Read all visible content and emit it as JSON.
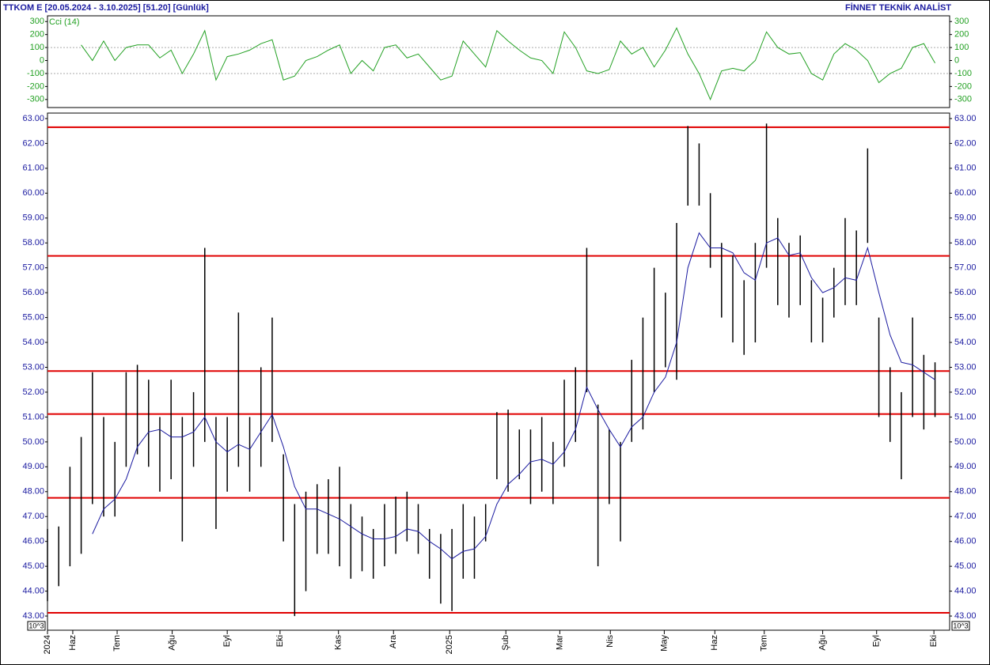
{
  "header": {
    "title": "TTKOM E  [20.05.2024 - 3.10.2025]  [51.20]  [Günlük]",
    "brand": "FİNNET TEKNİK ANALİST",
    "unit_label": "10^3"
  },
  "chart_data": [
    {
      "type": "line",
      "title": "Cci (14)",
      "color": "#22a022",
      "ylim": [
        -362,
        344
      ],
      "yticks": [
        300,
        200,
        100,
        0,
        -100,
        -200,
        -300
      ],
      "grid_values": [
        100,
        -100
      ],
      "xlim": [
        0,
        80.3
      ],
      "values": [
        null,
        null,
        null,
        120,
        0,
        150,
        0,
        100,
        120,
        120,
        20,
        80,
        -100,
        50,
        230,
        -150,
        30,
        50,
        80,
        130,
        160,
        -150,
        -120,
        0,
        30,
        80,
        120,
        -100,
        0,
        -80,
        100,
        120,
        20,
        50,
        -50,
        -150,
        -120,
        150,
        50,
        -50,
        230,
        150,
        80,
        20,
        0,
        -100,
        220,
        100,
        -80,
        -100,
        -70,
        150,
        50,
        100,
        -50,
        80,
        250,
        50,
        -100,
        -300,
        -80,
        -60,
        -80,
        0,
        220,
        100,
        50,
        60,
        -100,
        -150,
        50,
        130,
        80,
        0,
        -170,
        -100,
        -60,
        100,
        130,
        -20
      ]
    },
    {
      "type": "range_bar",
      "color": "#000000",
      "ylim": [
        42.43,
        63.22
      ],
      "xlim": [
        0,
        80.3
      ],
      "yticks": [
        {
          "value": 43,
          "label": "43.00"
        },
        {
          "value": 44,
          "label": "44.00"
        },
        {
          "value": 45,
          "label": "45.00"
        },
        {
          "value": 46,
          "label": "46.00"
        },
        {
          "value": 47,
          "label": "47.00"
        },
        {
          "value": 48,
          "label": "48.00"
        },
        {
          "value": 49,
          "label": "49.00"
        },
        {
          "value": 50,
          "label": "50.00"
        },
        {
          "value": 51,
          "label": "51.00"
        },
        {
          "value": 52,
          "label": "52.00"
        },
        {
          "value": 53,
          "label": "53.00"
        },
        {
          "value": 54,
          "label": "54.00"
        },
        {
          "value": 55,
          "label": "55.00"
        },
        {
          "value": 56,
          "label": "56.00"
        },
        {
          "value": 57,
          "label": "57.00"
        },
        {
          "value": 58,
          "label": "58.00"
        },
        {
          "value": 59,
          "label": "59.00"
        },
        {
          "value": 60,
          "label": "60.00"
        },
        {
          "value": 61,
          "label": "61.00"
        },
        {
          "value": 62,
          "label": "62.00"
        },
        {
          "value": 63,
          "label": "63.00"
        }
      ],
      "xticks": [
        {
          "value": 0,
          "label": "2024"
        },
        {
          "value": 2.25,
          "label": "Haz"
        },
        {
          "value": 6.2,
          "label": "Tem"
        },
        {
          "value": 11.1,
          "label": "Ağu"
        },
        {
          "value": 16,
          "label": "Eyl"
        },
        {
          "value": 20.7,
          "label": "Eki"
        },
        {
          "value": 25.9,
          "label": "Kas"
        },
        {
          "value": 30.8,
          "label": "Ara"
        },
        {
          "value": 35.8,
          "label": "2025"
        },
        {
          "value": 40.8,
          "label": "Şub"
        },
        {
          "value": 45.6,
          "label": "Mar"
        },
        {
          "value": 50.1,
          "label": "Nis"
        },
        {
          "value": 54.9,
          "label": "May"
        },
        {
          "value": 59.4,
          "label": "Haz"
        },
        {
          "value": 63.8,
          "label": "Tem"
        },
        {
          "value": 69,
          "label": "Ağu"
        },
        {
          "value": 73.8,
          "label": "Eyl"
        },
        {
          "value": 78.9,
          "label": "Eki"
        }
      ],
      "high": [
        46.5,
        46.6,
        49,
        50.2,
        52.8,
        51,
        50,
        52.8,
        53.1,
        52.5,
        51,
        52.5,
        51,
        52,
        57.8,
        51,
        51,
        55.2,
        51,
        53,
        55,
        49.5,
        47.5,
        48,
        48.3,
        48.5,
        49,
        47.5,
        47,
        46.5,
        47.5,
        47.8,
        48,
        47.5,
        46.5,
        46.3,
        46.5,
        47.5,
        47,
        47.5,
        51.2,
        51.3,
        50.5,
        50.5,
        51,
        50,
        52.5,
        53,
        57.8,
        51.5,
        50.5,
        50,
        53.3,
        55,
        57,
        56,
        58.8,
        62.7,
        62,
        60,
        58,
        57.5,
        56.5,
        58,
        62.8,
        59,
        58,
        58.3,
        56.5,
        55.8,
        57,
        59,
        58.5,
        61.8,
        55,
        53,
        52,
        55,
        53.5,
        53.2
      ],
      "low": [
        43.6,
        44.2,
        45,
        45.5,
        47.5,
        47,
        47,
        49,
        49.5,
        49,
        48,
        48.5,
        46,
        49,
        50,
        46.5,
        48,
        49,
        48,
        49,
        50,
        46,
        43,
        44,
        45.5,
        45.5,
        45,
        44.5,
        44.8,
        44.5,
        45,
        45.5,
        46,
        45.5,
        44.5,
        43.5,
        43.2,
        44.5,
        44.5,
        46,
        48.5,
        48,
        48.5,
        47.5,
        48,
        47.5,
        49,
        50,
        52,
        45,
        47.5,
        46,
        50,
        50.5,
        52,
        53,
        52.5,
        59.5,
        59.5,
        57,
        55,
        54,
        53.5,
        54,
        57,
        55.5,
        55,
        55.5,
        54,
        54,
        55,
        55.5,
        55.5,
        58,
        51,
        50,
        48.5,
        51,
        50.5,
        51
      ],
      "overlay": {
        "color": "#1a1aa0",
        "values": [
          null,
          null,
          null,
          null,
          46.3,
          47.3,
          47.7,
          48.5,
          49.8,
          50.4,
          50.5,
          50.2,
          50.2,
          50.4,
          51,
          50,
          49.6,
          49.9,
          49.7,
          50.4,
          51.1,
          49.8,
          48.2,
          47.3,
          47.3,
          47.1,
          46.9,
          46.6,
          46.3,
          46.1,
          46.1,
          46.2,
          46.5,
          46.4,
          46,
          45.7,
          45.3,
          45.6,
          45.7,
          46.2,
          47.5,
          48.3,
          48.7,
          49.2,
          49.3,
          49.1,
          49.6,
          50.5,
          52.2,
          51.3,
          50.5,
          49.8,
          50.6,
          51,
          52,
          52.6,
          54,
          57,
          58.4,
          57.8,
          57.8,
          57.6,
          56.8,
          56.5,
          58,
          58.2,
          57.5,
          57.6,
          56.6,
          56,
          56.2,
          56.6,
          56.5,
          57.8,
          56,
          54.3,
          53.2,
          53.1,
          52.8,
          52.5
        ]
      },
      "hlines": {
        "color": "#e00000",
        "values": [
          62.65,
          57.48,
          52.85,
          51.12,
          47.75,
          43.13
        ]
      }
    }
  ]
}
